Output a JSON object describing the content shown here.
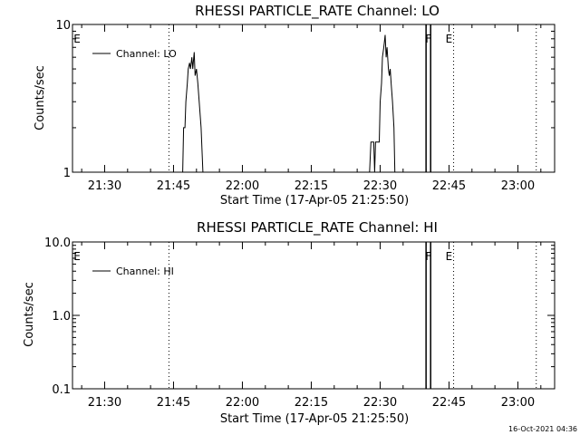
{
  "stamp": "16-Oct-2021 04:36",
  "chart_data": [
    {
      "type": "line",
      "title": "RHESSI PARTICLE_RATE Channel: LO",
      "xlabel": "Start Time (17-Apr-05 21:25:50)",
      "ylabel": "Counts/sec",
      "yscale": "log",
      "xlim": [
        "21:23",
        "23:08"
      ],
      "ylim": [
        1,
        10
      ],
      "x_tick_labels": [
        "21:30",
        "21:45",
        "22:00",
        "22:15",
        "22:30",
        "22:45",
        "23:00"
      ],
      "y_tick_labels": [
        {
          "value": 1,
          "label": "1"
        },
        {
          "value": 10,
          "label": "10"
        }
      ],
      "vlines_dotted": [
        "21:44",
        "22:46",
        "23:04"
      ],
      "vlines_solid": [
        "22:40",
        "22:41"
      ],
      "markers": [
        {
          "time": "21:24",
          "label": "E"
        },
        {
          "time": "22:40.5",
          "label": "F"
        },
        {
          "time": "22:45",
          "label": "E"
        }
      ],
      "legend": {
        "position": "top-left",
        "entries": [
          "Channel: LO"
        ]
      },
      "series": [
        {
          "name": "Channel: LO",
          "color": "#000000",
          "segments": [
            [
              [
                "21:47.0",
                1
              ],
              [
                "21:47.2",
                2
              ],
              [
                "21:47.5",
                2
              ],
              [
                "21:47.7",
                3
              ],
              [
                "21:48.0",
                4
              ],
              [
                "21:48.2",
                5
              ],
              [
                "21:48.5",
                5.5
              ],
              [
                "21:48.7",
                5
              ],
              [
                "21:49.0",
                6
              ],
              [
                "21:49.2",
                5
              ],
              [
                "21:49.5",
                6.5
              ],
              [
                "21:49.7",
                4.5
              ],
              [
                "21:50.0",
                5
              ],
              [
                "21:50.3",
                4
              ],
              [
                "21:50.6",
                3
              ],
              [
                "21:51.0",
                2
              ],
              [
                "21:51.4",
                1
              ]
            ],
            [
              [
                "22:27.7",
                1
              ],
              [
                "22:28.0",
                1.6
              ],
              [
                "22:28.6",
                1.6
              ],
              [
                "22:28.8",
                1
              ],
              [
                "22:29.0",
                1.6
              ],
              [
                "22:29.8",
                1.6
              ],
              [
                "22:30.0",
                3
              ],
              [
                "22:30.3",
                4
              ],
              [
                "22:30.5",
                6
              ],
              [
                "22:30.8",
                7
              ],
              [
                "22:31.1",
                8.5
              ],
              [
                "22:31.3",
                6
              ],
              [
                "22:31.5",
                7
              ],
              [
                "22:31.8",
                5
              ],
              [
                "22:32.0",
                4.5
              ],
              [
                "22:32.2",
                5
              ],
              [
                "22:32.4",
                4
              ],
              [
                "22:32.7",
                3
              ],
              [
                "22:33.0",
                2
              ],
              [
                "22:33.2",
                1
              ]
            ]
          ]
        }
      ]
    },
    {
      "type": "line",
      "title": "RHESSI PARTICLE_RATE Channel: HI",
      "xlabel": "Start Time (17-Apr-05 21:25:50)",
      "ylabel": "Counts/sec",
      "yscale": "log",
      "xlim": [
        "21:23",
        "23:08"
      ],
      "ylim": [
        0.1,
        10
      ],
      "x_tick_labels": [
        "21:30",
        "21:45",
        "22:00",
        "22:15",
        "22:30",
        "22:45",
        "23:00"
      ],
      "y_tick_labels": [
        {
          "value": 0.1,
          "label": "0.1"
        },
        {
          "value": 1,
          "label": "1.0"
        },
        {
          "value": 10,
          "label": "10.0"
        }
      ],
      "vlines_dotted": [
        "21:44",
        "22:46",
        "23:04"
      ],
      "vlines_solid": [
        "22:40",
        "22:41"
      ],
      "markers": [
        {
          "time": "21:24",
          "label": "E"
        },
        {
          "time": "22:40.5",
          "label": "F"
        },
        {
          "time": "22:45",
          "label": "E"
        }
      ],
      "legend": {
        "position": "top-left",
        "entries": [
          "Channel: HI"
        ]
      },
      "series": [
        {
          "name": "Channel: HI",
          "color": "#000000",
          "segments": []
        }
      ]
    }
  ]
}
